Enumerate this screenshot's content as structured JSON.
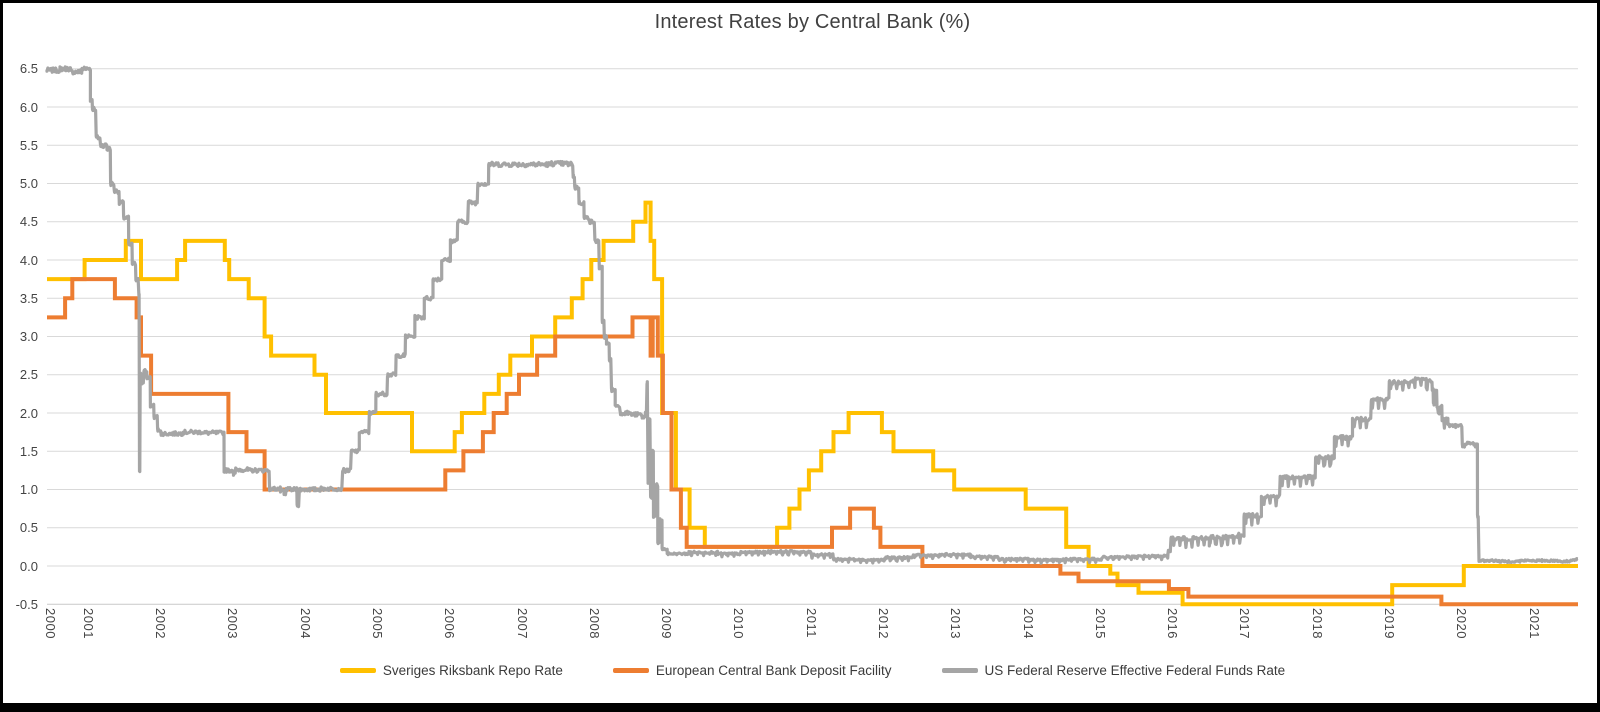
{
  "title": "Interest Rates by Central Bank (%)",
  "chart_data": {
    "type": "line",
    "title": "Interest Rates by Central Bank (%)",
    "xlabel": "",
    "ylabel": "",
    "grid": true,
    "grid_color": "#d9d9d9",
    "axis_line_color": "#c9c9c9",
    "legend_position": "bottom",
    "x_axis": {
      "range": [
        2000.42,
        2021.6
      ],
      "tick_years": [
        2000,
        2001,
        2002,
        2003,
        2004,
        2005,
        2006,
        2007,
        2008,
        2009,
        2010,
        2011,
        2012,
        2013,
        2014,
        2015,
        2016,
        2017,
        2018,
        2019,
        2020,
        2021
      ],
      "labels_rotated_vertical": true
    },
    "y_axis": {
      "range": [
        -0.5,
        6.5
      ],
      "tick_step": 0.5,
      "tick_labels": [
        "6.5",
        "6.0",
        "5.5",
        "5.0",
        "4.5",
        "4.0",
        "3.5",
        "3.0",
        "2.5",
        "2.0",
        "1.5",
        "1.0",
        "0.5",
        "0.0",
        "-0.5"
      ]
    },
    "series": [
      {
        "name": "Sveriges Riksbank Repo Rate",
        "color": "#FFC000",
        "stroke_width": 4,
        "style": "step",
        "points": [
          [
            2000.42,
            3.75
          ],
          [
            2000.94,
            4.0
          ],
          [
            2001.51,
            4.25
          ],
          [
            2001.72,
            3.75
          ],
          [
            2002.22,
            4.0
          ],
          [
            2002.33,
            4.25
          ],
          [
            2002.88,
            4.0
          ],
          [
            2002.94,
            3.75
          ],
          [
            2003.21,
            3.5
          ],
          [
            2003.43,
            3.0
          ],
          [
            2003.52,
            2.75
          ],
          [
            2004.12,
            2.5
          ],
          [
            2004.28,
            2.0
          ],
          [
            2005.47,
            1.5
          ],
          [
            2006.06,
            1.75
          ],
          [
            2006.16,
            2.0
          ],
          [
            2006.47,
            2.25
          ],
          [
            2006.67,
            2.5
          ],
          [
            2006.83,
            2.75
          ],
          [
            2007.13,
            3.0
          ],
          [
            2007.45,
            3.25
          ],
          [
            2007.68,
            3.5
          ],
          [
            2007.83,
            3.75
          ],
          [
            2007.95,
            4.0
          ],
          [
            2008.12,
            4.25
          ],
          [
            2008.53,
            4.5
          ],
          [
            2008.7,
            4.75
          ],
          [
            2008.77,
            4.25
          ],
          [
            2008.82,
            3.75
          ],
          [
            2008.93,
            2.0
          ],
          [
            2009.12,
            1.0
          ],
          [
            2009.31,
            0.5
          ],
          [
            2009.52,
            0.25
          ],
          [
            2010.52,
            0.5
          ],
          [
            2010.69,
            0.75
          ],
          [
            2010.83,
            1.0
          ],
          [
            2010.96,
            1.25
          ],
          [
            2011.13,
            1.5
          ],
          [
            2011.3,
            1.75
          ],
          [
            2011.51,
            2.0
          ],
          [
            2011.97,
            1.75
          ],
          [
            2012.13,
            1.5
          ],
          [
            2012.68,
            1.25
          ],
          [
            2012.97,
            1.0
          ],
          [
            2013.96,
            0.75
          ],
          [
            2014.52,
            0.25
          ],
          [
            2014.83,
            0.0
          ],
          [
            2015.13,
            -0.1
          ],
          [
            2015.23,
            -0.25
          ],
          [
            2015.52,
            -0.35
          ],
          [
            2016.13,
            -0.5
          ],
          [
            2019.03,
            -0.25
          ],
          [
            2020.02,
            0.0
          ]
        ]
      },
      {
        "name": "European Central Bank Deposit Facility",
        "color": "#ED7D31",
        "stroke_width": 4,
        "style": "step",
        "points": [
          [
            2000.42,
            3.25
          ],
          [
            2000.67,
            3.5
          ],
          [
            2000.77,
            3.75
          ],
          [
            2001.36,
            3.5
          ],
          [
            2001.66,
            3.25
          ],
          [
            2001.72,
            2.75
          ],
          [
            2001.86,
            2.25
          ],
          [
            2002.93,
            1.75
          ],
          [
            2003.18,
            1.5
          ],
          [
            2003.43,
            1.0
          ],
          [
            2005.93,
            1.25
          ],
          [
            2006.18,
            1.5
          ],
          [
            2006.45,
            1.75
          ],
          [
            2006.6,
            2.0
          ],
          [
            2006.78,
            2.25
          ],
          [
            2006.95,
            2.5
          ],
          [
            2007.2,
            2.75
          ],
          [
            2007.45,
            3.0
          ],
          [
            2008.52,
            3.25
          ],
          [
            2008.77,
            2.75
          ],
          [
            2008.8,
            3.25
          ],
          [
            2008.87,
            2.75
          ],
          [
            2008.94,
            2.0
          ],
          [
            2009.06,
            1.0
          ],
          [
            2009.19,
            0.5
          ],
          [
            2009.27,
            0.25
          ],
          [
            2011.28,
            0.5
          ],
          [
            2011.53,
            0.75
          ],
          [
            2011.86,
            0.5
          ],
          [
            2011.95,
            0.25
          ],
          [
            2012.53,
            0.0
          ],
          [
            2014.44,
            -0.1
          ],
          [
            2014.69,
            -0.2
          ],
          [
            2015.94,
            -0.3
          ],
          [
            2016.21,
            -0.4
          ],
          [
            2019.71,
            -0.5
          ]
        ]
      },
      {
        "name": "US Federal Reserve Effective Federal Funds Rate",
        "color": "#A5A5A5",
        "stroke_width": 3.2,
        "style": "step-noisy",
        "noise": {
          "amp_high": 0.03,
          "amp_mid": 0.025,
          "amp_low": 0.013,
          "month_dips": {
            "from": 2009.3,
            "to": 2019.8,
            "depth_early": 0.035,
            "depth_late": 0.1
          }
        },
        "points": [
          [
            2000.42,
            6.48
          ],
          [
            2000.6,
            6.5
          ],
          [
            2000.75,
            6.46
          ],
          [
            2000.9,
            6.5
          ],
          [
            2001.02,
            6.1
          ],
          [
            2001.05,
            5.98
          ],
          [
            2001.1,
            5.6
          ],
          [
            2001.16,
            5.5
          ],
          [
            2001.25,
            5.45
          ],
          [
            2001.3,
            5.0
          ],
          [
            2001.35,
            4.9
          ],
          [
            2001.42,
            4.75
          ],
          [
            2001.48,
            4.55
          ],
          [
            2001.55,
            4.2
          ],
          [
            2001.6,
            3.95
          ],
          [
            2001.65,
            3.75
          ],
          [
            2001.69,
            3.55
          ],
          [
            2001.7,
            1.25
          ],
          [
            2001.71,
            2.5
          ],
          [
            2001.73,
            2.4
          ],
          [
            2001.76,
            2.55
          ],
          [
            2001.8,
            2.45
          ],
          [
            2001.85,
            2.1
          ],
          [
            2001.9,
            1.95
          ],
          [
            2001.95,
            1.78
          ],
          [
            2002.0,
            1.73
          ],
          [
            2002.3,
            1.75
          ],
          [
            2002.6,
            1.74
          ],
          [
            2002.87,
            1.25
          ],
          [
            2003.0,
            1.2
          ],
          [
            2003.03,
            1.26
          ],
          [
            2003.2,
            1.25
          ],
          [
            2003.5,
            1.01
          ],
          [
            2003.65,
            0.98
          ],
          [
            2003.7,
            0.93
          ],
          [
            2003.73,
            1.0
          ],
          [
            2003.88,
            0.8
          ],
          [
            2003.91,
            1.0
          ],
          [
            2004.05,
            1.0
          ],
          [
            2004.2,
            1.01
          ],
          [
            2004.51,
            1.25
          ],
          [
            2004.63,
            1.5
          ],
          [
            2004.74,
            1.75
          ],
          [
            2004.88,
            2.0
          ],
          [
            2004.97,
            2.25
          ],
          [
            2005.13,
            2.5
          ],
          [
            2005.25,
            2.75
          ],
          [
            2005.38,
            3.0
          ],
          [
            2005.51,
            3.25
          ],
          [
            2005.64,
            3.5
          ],
          [
            2005.76,
            3.75
          ],
          [
            2005.88,
            4.0
          ],
          [
            2006.0,
            4.25
          ],
          [
            2006.1,
            4.5
          ],
          [
            2006.25,
            4.75
          ],
          [
            2006.38,
            5.0
          ],
          [
            2006.53,
            5.25
          ],
          [
            2007.0,
            5.25
          ],
          [
            2007.4,
            5.26
          ],
          [
            2007.63,
            5.25
          ],
          [
            2007.7,
            5.1
          ],
          [
            2007.72,
            4.95
          ],
          [
            2007.78,
            4.75
          ],
          [
            2007.85,
            4.55
          ],
          [
            2007.93,
            4.5
          ],
          [
            2008.0,
            4.25
          ],
          [
            2008.06,
            3.9
          ],
          [
            2008.1,
            3.2
          ],
          [
            2008.13,
            3.0
          ],
          [
            2008.16,
            2.9
          ],
          [
            2008.2,
            2.7
          ],
          [
            2008.23,
            2.3
          ],
          [
            2008.28,
            2.1
          ],
          [
            2008.35,
            2.0
          ],
          [
            2008.5,
            1.98
          ],
          [
            2008.65,
            1.95
          ],
          [
            2008.7,
            2.0
          ],
          [
            2008.72,
            2.4
          ],
          [
            2008.735,
            1.1
          ],
          [
            2008.75,
            1.9
          ],
          [
            2008.77,
            0.9
          ],
          [
            2008.79,
            1.5
          ],
          [
            2008.81,
            0.65
          ],
          [
            2008.84,
            1.05
          ],
          [
            2008.87,
            0.3
          ],
          [
            2008.9,
            0.6
          ],
          [
            2008.93,
            0.22
          ],
          [
            2009.0,
            0.16
          ],
          [
            2009.3,
            0.18
          ],
          [
            2009.7,
            0.16
          ],
          [
            2010.0,
            0.18
          ],
          [
            2010.4,
            0.19
          ],
          [
            2010.8,
            0.18
          ],
          [
            2011.0,
            0.15
          ],
          [
            2011.3,
            0.09
          ],
          [
            2011.7,
            0.08
          ],
          [
            2012.0,
            0.11
          ],
          [
            2012.4,
            0.14
          ],
          [
            2012.8,
            0.15
          ],
          [
            2013.2,
            0.12
          ],
          [
            2013.6,
            0.09
          ],
          [
            2014.0,
            0.08
          ],
          [
            2014.5,
            0.09
          ],
          [
            2015.0,
            0.12
          ],
          [
            2015.5,
            0.13
          ],
          [
            2015.93,
            0.2
          ],
          [
            2015.97,
            0.36
          ],
          [
            2016.5,
            0.38
          ],
          [
            2016.9,
            0.41
          ],
          [
            2016.98,
            0.66
          ],
          [
            2017.22,
            0.91
          ],
          [
            2017.48,
            1.16
          ],
          [
            2017.97,
            1.42
          ],
          [
            2018.23,
            1.68
          ],
          [
            2018.48,
            1.92
          ],
          [
            2018.74,
            2.18
          ],
          [
            2018.99,
            2.4
          ],
          [
            2019.2,
            2.41
          ],
          [
            2019.35,
            2.44
          ],
          [
            2019.5,
            2.42
          ],
          [
            2019.58,
            2.4
          ],
          [
            2019.6,
            2.13
          ],
          [
            2019.62,
            2.28
          ],
          [
            2019.65,
            2.1
          ],
          [
            2019.72,
            1.92
          ],
          [
            2019.8,
            1.84
          ],
          [
            2019.9,
            1.83
          ],
          [
            2020.0,
            1.58
          ],
          [
            2020.07,
            1.6
          ],
          [
            2020.18,
            1.58
          ],
          [
            2020.21,
            0.65
          ],
          [
            2020.23,
            0.07
          ],
          [
            2020.5,
            0.06
          ],
          [
            2020.8,
            0.07
          ],
          [
            2021.1,
            0.07
          ],
          [
            2021.35,
            0.06
          ],
          [
            2021.5,
            0.08
          ],
          [
            2021.58,
            0.09
          ]
        ]
      }
    ]
  }
}
